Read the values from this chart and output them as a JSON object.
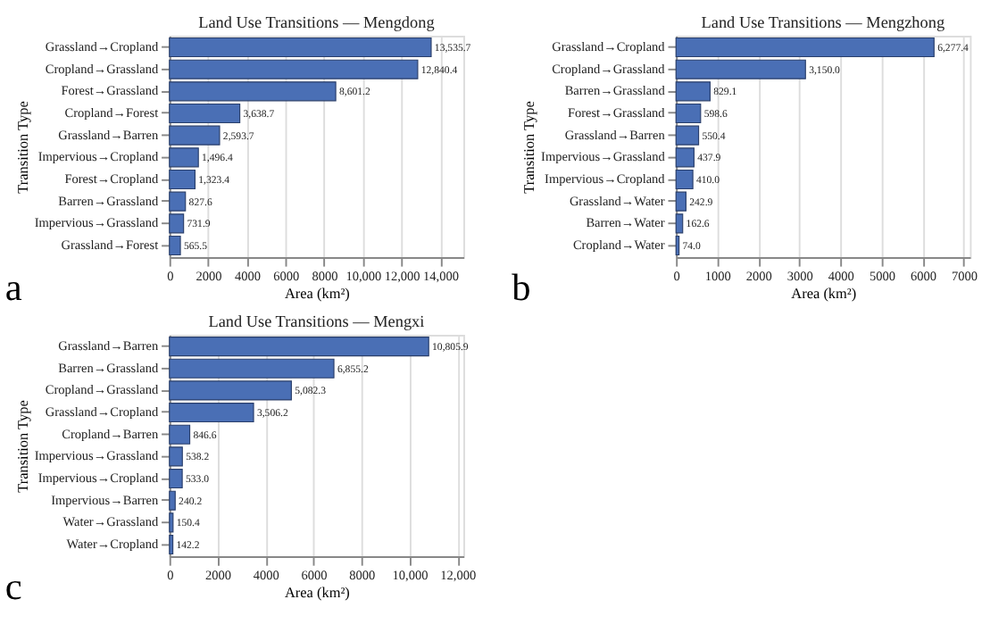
{
  "chart_data": [
    {
      "type": "bar",
      "orientation": "horizontal",
      "title": "Land Use Transitions — Mengdong",
      "xlabel": "Area (km²)",
      "ylabel": "Transition Type",
      "categories": [
        "Grassland→Cropland",
        "Cropland→Grassland",
        "Forest→Grassland",
        "Cropland→Forest",
        "Grassland→Barren",
        "Impervious→Cropland",
        "Forest→Cropland",
        "Barren→Grassland",
        "Impervious→Grassland",
        "Grassland→Forest"
      ],
      "values": [
        13535.7,
        12840.4,
        8601.2,
        3638.7,
        2593.7,
        1496.4,
        1323.4,
        827.6,
        731.9,
        565.5
      ],
      "value_labels": [
        "13,535.7",
        "12,840.4",
        "8,601.2",
        "3,638.7",
        "2,593.7",
        "1,496.4",
        "1,323.4",
        "827.6",
        "731.9",
        "565.5"
      ],
      "color": "#4a6fb5",
      "xlim": [
        0,
        15200
      ],
      "xticks": [
        0,
        2000,
        4000,
        6000,
        8000,
        {
          "value": 10000,
          "label": "10,000"
        },
        {
          "value": 12000,
          "label": "12,000"
        },
        {
          "value": 14000,
          "label": "14,000"
        }
      ],
      "grid": "x",
      "annotations": [
        "a"
      ]
    },
    {
      "type": "bar",
      "orientation": "horizontal",
      "title": "Land Use Transitions — Mengzhong",
      "xlabel": "Area (km²)",
      "ylabel": "Transition Type",
      "categories": [
        "Grassland→Cropland",
        "Cropland→Grassland",
        "Barren→Grassland",
        "Forest→Grassland",
        "Grassland→Barren",
        "Impervious→Grassland",
        "Impervious→Cropland",
        "Grassland→Water",
        "Barren→Water",
        "Cropland→Water"
      ],
      "values": [
        6277.4,
        3150.0,
        829.1,
        598.6,
        550.4,
        437.9,
        410.0,
        242.9,
        162.6,
        74.0
      ],
      "value_labels": [
        "6,277.4",
        "3,150.0",
        "829.1",
        "598.6",
        "550.4",
        "437.9",
        "410.0",
        "242.9",
        "162.6",
        "74.0"
      ],
      "color": "#4a6fb5",
      "xlim": [
        0,
        7150
      ],
      "xticks": [
        0,
        1000,
        2000,
        3000,
        4000,
        5000,
        6000,
        7000
      ],
      "grid": "x",
      "annotations": [
        "b"
      ]
    },
    {
      "type": "bar",
      "orientation": "horizontal",
      "title": "Land Use Transitions — Mengxi",
      "xlabel": "Area (km²)",
      "ylabel": "Transition Type",
      "categories": [
        "Grassland→Barren",
        "Barren→Grassland",
        "Cropland→Grassland",
        "Grassland→Cropland",
        "Cropland→Barren",
        "Impervious→Grassland",
        "Impervious→Cropland",
        "Impervious→Barren",
        "Water→Grassland",
        "Water→Cropland"
      ],
      "values": [
        10805.9,
        6855.2,
        5082.3,
        3506.2,
        846.6,
        538.2,
        533.0,
        240.2,
        150.4,
        142.2
      ],
      "value_labels": [
        "10,805.9",
        "6,855.2",
        "5,082.3",
        "3,506.2",
        "846.6",
        "538.2",
        "533.0",
        "240.2",
        "150.4",
        "142.2"
      ],
      "color": "#4a6fb5",
      "xlim": [
        0,
        12250
      ],
      "xticks": [
        0,
        2000,
        4000,
        6000,
        8000,
        {
          "value": 10000,
          "label": "10,000"
        },
        {
          "value": 12000,
          "label": "12,000"
        }
      ],
      "grid": "x",
      "annotations": [
        "c"
      ]
    }
  ]
}
